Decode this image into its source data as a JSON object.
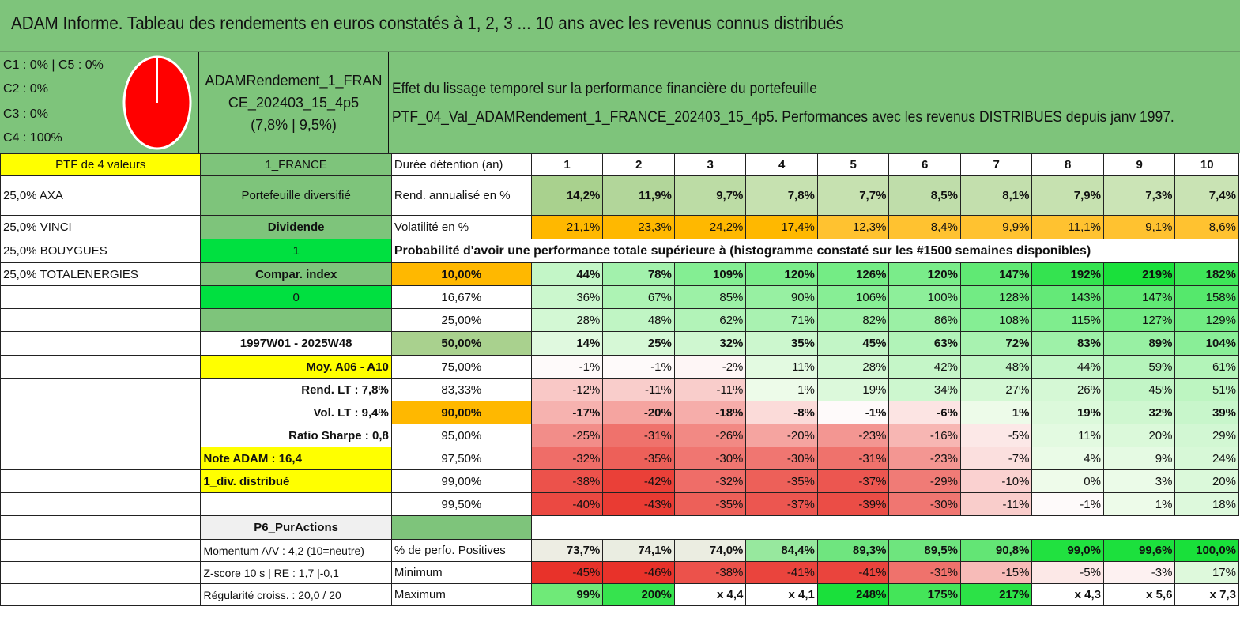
{
  "title": "ADAM Informe. Tableau des rendements en euros constatés à 1, 2, 3 ... 10 ans avec les revenus connus distribués",
  "classes": [
    "C1 : 0% | C5 : 0%",
    "C2 : 0%",
    "C3 : 0%",
    "C4 : 100%"
  ],
  "pie": {
    "color": "#ff0000"
  },
  "portfolio": {
    "name_line1": "ADAMRendement_1_FRAN",
    "name_line2": "CE_202403_15_4p5",
    "stats": "(7,8% | 9,5%)"
  },
  "description": {
    "line1": "Effet du lissage temporel sur la performance financière du portefeuille",
    "line2": "PTF_04_Val_ADAMRendement_1_FRANCE_202403_15_4p5. Performances avec les revenus DISTRIBUES depuis janv 1997."
  },
  "left": {
    "ptf_count": "PTF de 4 valeurs",
    "holdings": [
      "25,0% AXA",
      "25,0% VINCI",
      "25,0% BOUYGUES",
      "25,0% TOTALENERGIES"
    ]
  },
  "mid": {
    "market": "1_FRANCE",
    "type": "Portefeuille diversifié",
    "dividend_label": "Dividende",
    "dividend_value": "1",
    "index_label": "Compar. index",
    "index_value": "0",
    "period": "1997W01 - 2025W48",
    "avg": "Moy. A06 - A10",
    "rend_lt": "Rend. LT : 7,8%",
    "vol_lt": "Vol. LT : 9,4%",
    "sharpe": "Ratio Sharpe : 0,8",
    "note": "Note ADAM : 16,4",
    "div": "1_div. distribué",
    "profile": "P6_PurActions",
    "momentum": "Momentum A/V : 4,2 (10=neutre)",
    "zscore": "Z-score 10 s | RE : 1,7 |-0,1",
    "regularity": "Régularité croiss. : 20,0 / 20"
  },
  "table": {
    "header_label": "Durée détention (an)",
    "years": [
      "1",
      "2",
      "3",
      "4",
      "5",
      "6",
      "7",
      "8",
      "9",
      "10"
    ],
    "rend_label": "Rend. annualisé en %",
    "rend": [
      "14,2%",
      "11,9%",
      "9,7%",
      "7,8%",
      "7,7%",
      "8,5%",
      "8,1%",
      "7,9%",
      "7,3%",
      "7,4%"
    ],
    "vol_label": "Volatilité en %",
    "vol": [
      "21,1%",
      "23,3%",
      "24,2%",
      "17,4%",
      "12,3%",
      "8,4%",
      "9,9%",
      "11,1%",
      "9,1%",
      "8,6%"
    ],
    "prob_title": "Probabilité d'avoir une performance totale supérieure à (histogramme constaté sur les #1500 semaines disponibles)",
    "prob_rows": [
      {
        "level": "10,00%",
        "values": [
          "44%",
          "78%",
          "109%",
          "120%",
          "126%",
          "120%",
          "147%",
          "192%",
          "219%",
          "182%"
        ]
      },
      {
        "level": "16,67%",
        "values": [
          "36%",
          "67%",
          "85%",
          "90%",
          "106%",
          "100%",
          "128%",
          "143%",
          "147%",
          "158%"
        ]
      },
      {
        "level": "25,00%",
        "values": [
          "28%",
          "48%",
          "62%",
          "71%",
          "82%",
          "86%",
          "108%",
          "115%",
          "127%",
          "129%"
        ]
      },
      {
        "level": "50,00%",
        "values": [
          "14%",
          "25%",
          "32%",
          "35%",
          "45%",
          "63%",
          "72%",
          "83%",
          "89%",
          "104%"
        ]
      },
      {
        "level": "75,00%",
        "values": [
          "-1%",
          "-1%",
          "-2%",
          "11%",
          "28%",
          "42%",
          "48%",
          "44%",
          "59%",
          "61%"
        ]
      },
      {
        "level": "83,33%",
        "values": [
          "-12%",
          "-11%",
          "-11%",
          "1%",
          "19%",
          "34%",
          "27%",
          "26%",
          "45%",
          "51%"
        ]
      },
      {
        "level": "90,00%",
        "values": [
          "-17%",
          "-20%",
          "-18%",
          "-8%",
          "-1%",
          "-6%",
          "1%",
          "19%",
          "32%",
          "39%"
        ]
      },
      {
        "level": "95,00%",
        "values": [
          "-25%",
          "-31%",
          "-26%",
          "-20%",
          "-23%",
          "-16%",
          "-5%",
          "11%",
          "20%",
          "29%"
        ]
      },
      {
        "level": "97,50%",
        "values": [
          "-32%",
          "-35%",
          "-30%",
          "-30%",
          "-31%",
          "-23%",
          "-7%",
          "4%",
          "9%",
          "24%"
        ]
      },
      {
        "level": "99,00%",
        "values": [
          "-38%",
          "-42%",
          "-32%",
          "-35%",
          "-37%",
          "-29%",
          "-10%",
          "0%",
          "3%",
          "20%"
        ]
      },
      {
        "level": "99,50%",
        "values": [
          "-40%",
          "-43%",
          "-35%",
          "-37%",
          "-39%",
          "-30%",
          "-11%",
          "-1%",
          "1%",
          "18%"
        ]
      }
    ],
    "pos_label": "% de perfo. Positives",
    "pos": [
      "73,7%",
      "74,1%",
      "74,0%",
      "84,4%",
      "89,3%",
      "89,5%",
      "90,8%",
      "99,0%",
      "99,6%",
      "100,0%"
    ],
    "min_label": "Minimum",
    "min": [
      "-45%",
      "-46%",
      "-38%",
      "-41%",
      "-41%",
      "-31%",
      "-15%",
      "-5%",
      "-3%",
      "17%"
    ],
    "max_label": "Maximum",
    "max": [
      "99%",
      "200%",
      "x 4,4",
      "x 4,1",
      "248%",
      "175%",
      "217%",
      "x 4,3",
      "x 5,6",
      "x 7,3"
    ]
  }
}
